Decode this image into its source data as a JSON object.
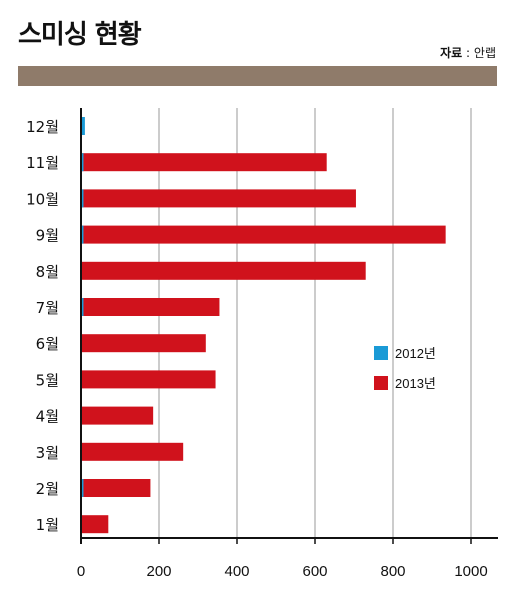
{
  "header": {
    "title": "스미싱 현황",
    "source_label": "자료",
    "source_sep": " : ",
    "source_value": "안랩"
  },
  "colors": {
    "band": "#8f7b6a",
    "series_2012": "#1a9ad6",
    "series_2013": "#d0121c",
    "grid": "#999999",
    "axis": "#111111"
  },
  "chart_data": {
    "type": "bar",
    "orientation": "horizontal",
    "categories": [
      "12월",
      "11월",
      "10월",
      "9월",
      "8월",
      "7월",
      "6월",
      "5월",
      "4월",
      "3월",
      "2월",
      "1월"
    ],
    "series": [
      {
        "name": "2012년",
        "values": [
          10,
          5,
          5,
          5,
          0,
          5,
          0,
          0,
          0,
          0,
          5,
          0
        ]
      },
      {
        "name": "2013년",
        "values": [
          0,
          630,
          705,
          935,
          730,
          355,
          320,
          345,
          185,
          262,
          178,
          70
        ]
      }
    ],
    "xlim": [
      0,
      1000
    ],
    "x_ticks": [
      0,
      200,
      400,
      600,
      800,
      1000
    ],
    "grid": true,
    "legend_position": "right-middle",
    "title": "",
    "xlabel": "",
    "ylabel": ""
  }
}
